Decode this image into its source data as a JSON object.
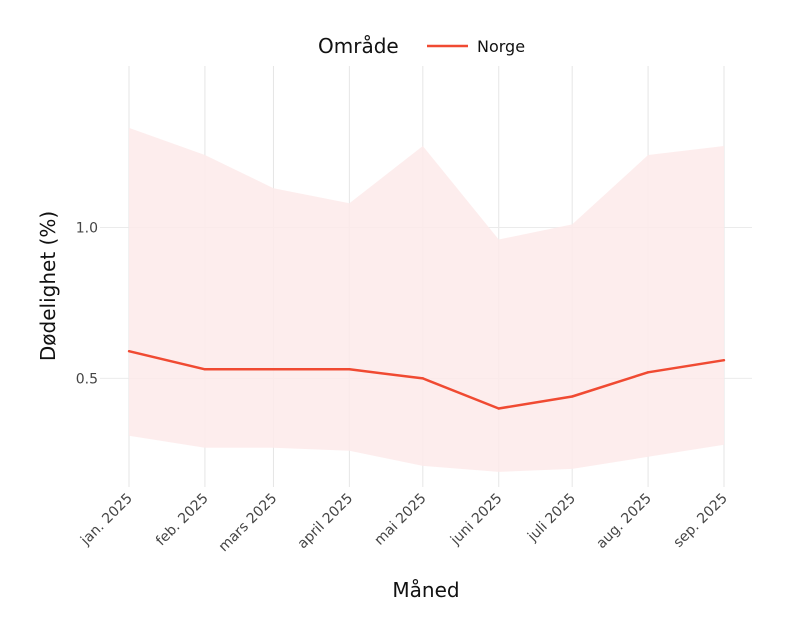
{
  "chart_data": {
    "type": "line",
    "xlabel": "Måned",
    "ylabel": "Dødelighet (%)",
    "categories": [
      "jan. 2025",
      "feb. 2025",
      "mars 2025",
      "april 2025",
      "mai 2025",
      "juni 2025",
      "juli 2025",
      "aug. 2025",
      "sep. 2025"
    ],
    "x_dates": [
      "2025-01-01",
      "2025-02-01",
      "2025-03-01",
      "2025-04-01",
      "2025-05-01",
      "2025-06-01",
      "2025-07-01",
      "2025-08-01",
      "2025-09-01"
    ],
    "yticks": [
      0.5,
      1.0
    ],
    "ytick_labels": [
      "0.5",
      "1.0"
    ],
    "ylim": [
      0.14,
      1.535
    ],
    "grid": true,
    "legend": {
      "title": "Område",
      "placement": "top-center"
    },
    "series": [
      {
        "name": "Norge",
        "color": "#f04a32",
        "values": [
          0.59,
          0.53,
          0.53,
          0.53,
          0.5,
          0.4,
          0.44,
          0.52,
          0.56
        ],
        "lower": [
          0.31,
          0.27,
          0.27,
          0.26,
          0.21,
          0.19,
          0.2,
          0.24,
          0.28
        ],
        "upper": [
          1.33,
          1.24,
          1.13,
          1.08,
          1.27,
          0.96,
          1.01,
          1.24,
          1.27
        ],
        "band_color": "#fdeaea"
      }
    ]
  }
}
